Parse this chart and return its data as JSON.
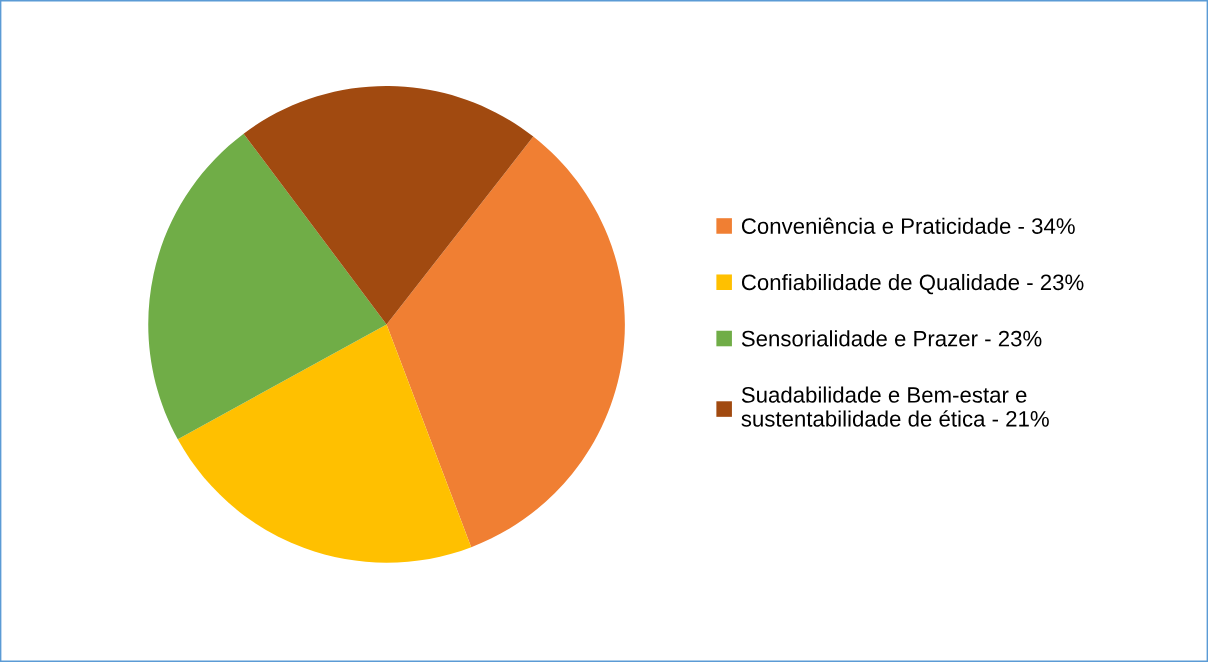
{
  "chart_data": {
    "type": "pie",
    "categories": [
      "Conveniência e Praticidade - 34%",
      "Confiabilidade de Qualidade - 23%",
      "Sensorialidade e Prazer - 23%",
      "Suadabilidade e Bem-estar e\nsustentabilidade de ética - 21%"
    ],
    "values": [
      34,
      23,
      23,
      21
    ],
    "colors": [
      "#f07f33",
      "#ffc000",
      "#70ad47",
      "#a14a10"
    ],
    "legend": "right"
  }
}
